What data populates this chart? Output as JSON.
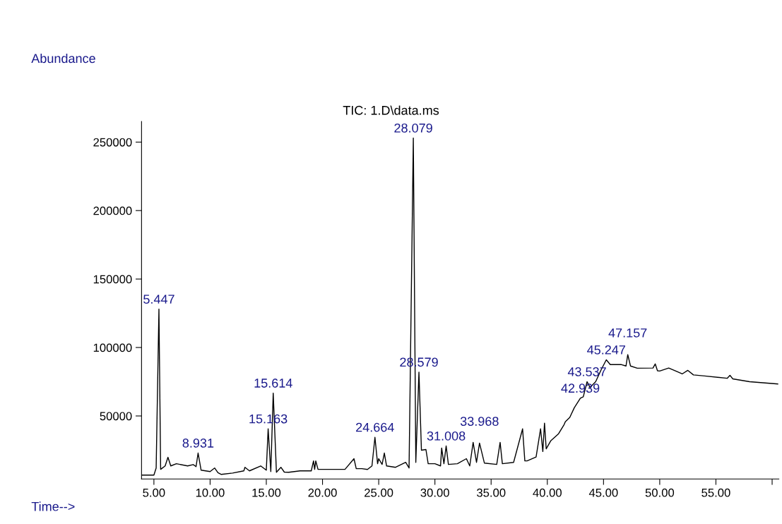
{
  "chart_data": {
    "type": "line",
    "title": "TIC: 1.D\\data.ms",
    "xlabel": "Time-->",
    "ylabel": "Abundance",
    "xlim": [
      3.9,
      60.6
    ],
    "ylim": [
      4000,
      265000
    ],
    "xticks": [
      {
        "value": 5,
        "label": "5.00"
      },
      {
        "value": 10,
        "label": "10.00"
      },
      {
        "value": 15,
        "label": "15.00"
      },
      {
        "value": 20,
        "label": "20.00"
      },
      {
        "value": 25,
        "label": "25.00"
      },
      {
        "value": 30,
        "label": "30.00"
      },
      {
        "value": 35,
        "label": "35.00"
      },
      {
        "value": 40,
        "label": "40.00"
      },
      {
        "value": 45,
        "label": "45.00"
      },
      {
        "value": 50,
        "label": "50.00"
      },
      {
        "value": 55,
        "label": "55.00"
      },
      {
        "value": 60,
        "label": null
      }
    ],
    "yticks": [
      50000,
      100000,
      150000,
      200000,
      250000
    ],
    "grid": false,
    "legend": false,
    "marker": "none",
    "line_style": "solid",
    "series": [
      {
        "color": "#000000",
        "x": [
          3.94,
          5.0,
          5.2,
          5.447,
          5.6,
          6.0,
          6.25,
          6.5,
          7.0,
          8.0,
          8.5,
          8.75,
          8.931,
          9.2,
          10.0,
          10.4,
          10.7,
          11.0,
          12.0,
          13.0,
          13.1,
          13.5,
          14.5,
          15.0,
          15.163,
          15.4,
          15.614,
          15.9,
          16.3,
          16.6,
          17.0,
          18.0,
          19.0,
          19.2,
          19.3,
          19.4,
          19.6,
          20.0,
          22.0,
          22.8,
          23.0,
          23.5,
          24.0,
          24.4,
          24.664,
          24.9,
          25.0,
          25.3,
          25.5,
          25.7,
          26.5,
          27.4,
          27.7,
          28.079,
          28.3,
          28.579,
          28.8,
          29.2,
          29.4,
          30.0,
          30.5,
          30.6,
          30.8,
          31.0,
          31.2,
          32.0,
          32.8,
          33.1,
          33.4,
          33.7,
          33.968,
          34.4,
          35.5,
          35.8,
          36.0,
          37.0,
          37.8,
          38.0,
          38.2,
          39.0,
          39.4,
          39.6,
          39.75,
          39.9,
          40.3,
          41.0,
          41.5,
          41.6,
          42.0,
          42.4,
          42.939,
          43.2,
          43.537,
          43.8,
          44.3,
          44.8,
          45.247,
          45.6,
          46.6,
          47.0,
          47.157,
          47.4,
          48.0,
          49.4,
          49.6,
          49.8,
          50.0,
          50.8,
          51.5,
          52.0,
          52.5,
          53.0,
          54.0,
          56.0,
          56.25,
          56.5,
          58.0,
          60.5
        ],
        "values": [
          6800,
          6800,
          12000,
          128000,
          11000,
          13500,
          19800,
          13500,
          15100,
          13500,
          14500,
          13000,
          22900,
          10400,
          9400,
          12000,
          8500,
          7300,
          8300,
          9900,
          12500,
          9900,
          13500,
          10400,
          40600,
          9400,
          66700,
          8900,
          12500,
          9000,
          8900,
          9900,
          9900,
          17200,
          11000,
          17200,
          11000,
          11000,
          11000,
          18800,
          11500,
          11500,
          10900,
          13500,
          34400,
          15100,
          18800,
          14600,
          22900,
          13500,
          12500,
          16100,
          12000,
          253000,
          16100,
          82000,
          25000,
          25500,
          15100,
          15100,
          13500,
          26600,
          15100,
          28100,
          14600,
          15100,
          18800,
          13500,
          30700,
          16100,
          30200,
          15600,
          14600,
          30700,
          15100,
          16100,
          40600,
          17200,
          17200,
          20000,
          40600,
          24000,
          44800,
          26000,
          31800,
          37000,
          43800,
          45800,
          49000,
          56000,
          63000,
          64000,
          75000,
          70800,
          75000,
          83900,
          91000,
          87500,
          87500,
          86500,
          94800,
          86500,
          84900,
          85000,
          88000,
          83000,
          82800,
          85000,
          82500,
          80700,
          83300,
          80000,
          79200,
          77500,
          79700,
          77100,
          75000,
          73400
        ]
      }
    ],
    "annotations": [
      {
        "text": "5.447",
        "x": 5.447,
        "y": 128000
      },
      {
        "text": "8.931",
        "x": 8.931,
        "y": 22900
      },
      {
        "text": "15.163",
        "x": 15.163,
        "y": 40600
      },
      {
        "text": "15.614",
        "x": 15.614,
        "y": 66700
      },
      {
        "text": "24.664",
        "x": 24.664,
        "y": 34400
      },
      {
        "text": "28.079",
        "x": 28.079,
        "y": 253000
      },
      {
        "text": "28.579",
        "x": 28.579,
        "y": 82000
      },
      {
        "text": "31.008",
        "x": 31.0,
        "y": 28100
      },
      {
        "text": "33.968",
        "x": 33.968,
        "y": 30200
      },
      {
        "text": "42.939",
        "x": 42.939,
        "y": 63000
      },
      {
        "text": "43.537",
        "x": 43.537,
        "y": 75000
      },
      {
        "text": "45.247",
        "x": 45.247,
        "y": 91000
      },
      {
        "text": "47.157",
        "x": 47.157,
        "y": 94800
      }
    ]
  }
}
